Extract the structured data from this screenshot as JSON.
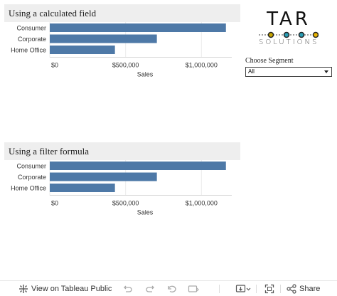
{
  "colors": {
    "bar": "#4e79a7",
    "header_bg": "#eeeeee",
    "logo_dot_outline": "#222222",
    "logo_dot_fill_left": "#c8a600",
    "logo_dot_fill_mid": "#2a9db5",
    "logo_dot_fill_right": "#e8b400"
  },
  "logo": {
    "title": "TAR",
    "subtitle": "SOLUTIONS"
  },
  "filter": {
    "label": "Choose Segment",
    "value": "All"
  },
  "charts": [
    {
      "title": "Using a calculated field",
      "chart_data": {
        "type": "bar",
        "orientation": "horizontal",
        "categories": [
          "Consumer",
          "Corporate",
          "Home Office"
        ],
        "values": [
          1161401,
          706146,
          429653
        ],
        "xlabel": "Sales",
        "xlim": [
          0,
          1200000
        ],
        "xticks": [
          0,
          500000,
          1000000
        ],
        "xtick_labels": [
          "$0",
          "$500,000",
          "$1,000,000"
        ],
        "grid": true
      }
    },
    {
      "title": "Using a filter formula",
      "chart_data": {
        "type": "bar",
        "orientation": "horizontal",
        "categories": [
          "Consumer",
          "Corporate",
          "Home Office"
        ],
        "values": [
          1161401,
          706146,
          429653
        ],
        "xlabel": "Sales",
        "xlim": [
          0,
          1200000
        ],
        "xticks": [
          0,
          500000,
          1000000
        ],
        "xtick_labels": [
          "$0",
          "$500,000",
          "$1,000,000"
        ],
        "grid": true
      }
    }
  ],
  "toolbar": {
    "view_label": "View on Tableau Public",
    "share_label": "Share",
    "icons": [
      "tableau-icon",
      "undo-icon",
      "redo-icon",
      "revert-icon",
      "pause-icon",
      "download-icon",
      "fullscreen-icon",
      "share-icon"
    ]
  }
}
